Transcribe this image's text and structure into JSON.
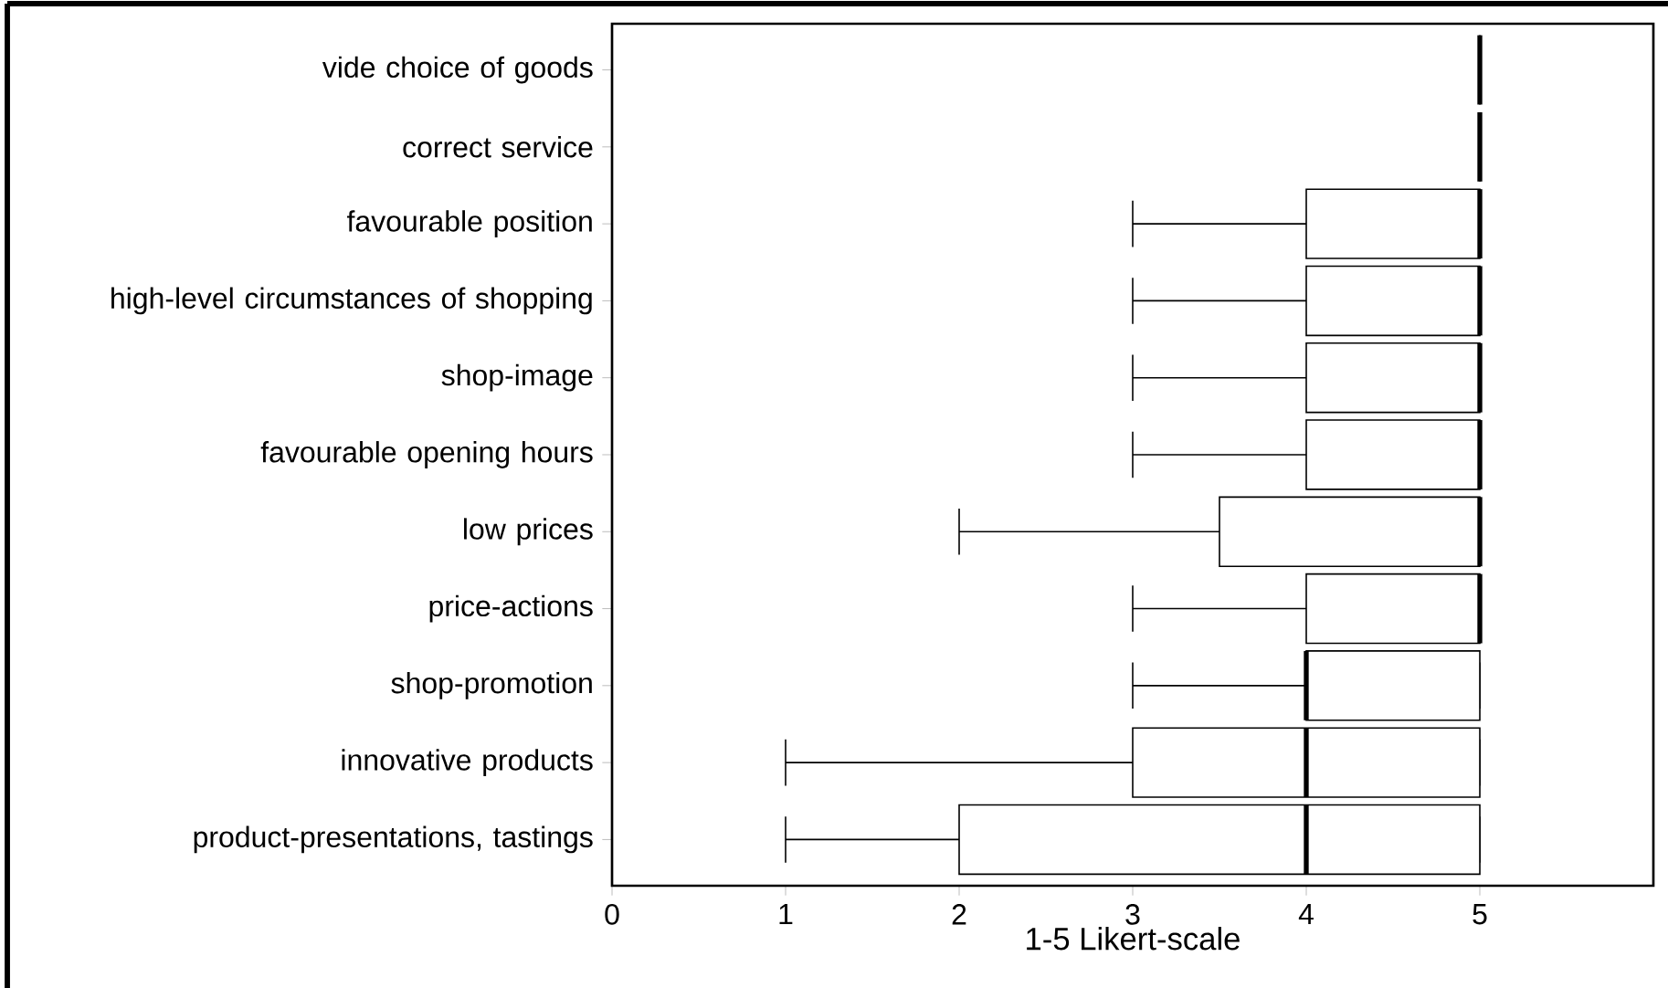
{
  "chart_data": {
    "type": "box",
    "orientation": "horizontal",
    "xlabel": "1-5 Likert-scale",
    "categories": [
      "vide choice of goods",
      "correct service",
      "favourable position",
      "high-level circumstances of shopping",
      "shop-image",
      "favourable opening hours",
      "low prices",
      "price-actions",
      "shop-promotion",
      "innovative products",
      "product-presentations, tastings"
    ],
    "boxes": [
      {
        "low": 5,
        "q1": 5,
        "median": 5,
        "q3": 5,
        "high": 5
      },
      {
        "low": 5,
        "q1": 5,
        "median": 5,
        "q3": 5,
        "high": 5
      },
      {
        "low": 3,
        "q1": 4,
        "median": 5,
        "q3": 5,
        "high": 5
      },
      {
        "low": 3,
        "q1": 4,
        "median": 5,
        "q3": 5,
        "high": 5
      },
      {
        "low": 3,
        "q1": 4,
        "median": 5,
        "q3": 5,
        "high": 5
      },
      {
        "low": 3,
        "q1": 4,
        "median": 5,
        "q3": 5,
        "high": 5
      },
      {
        "low": 2,
        "q1": 3.5,
        "median": 5,
        "q3": 5,
        "high": 5
      },
      {
        "low": 3,
        "q1": 4,
        "median": 5,
        "q3": 5,
        "high": 5
      },
      {
        "low": 3,
        "q1": 4,
        "median": 4,
        "q3": 5,
        "high": 5
      },
      {
        "low": 1,
        "q1": 3,
        "median": 4,
        "q3": 5,
        "high": 5
      },
      {
        "low": 1,
        "q1": 2,
        "median": 4,
        "q3": 5,
        "high": 5
      }
    ],
    "color": "#000000",
    "xlim": [
      0,
      6
    ],
    "xticks": [
      0,
      1,
      2,
      3,
      4,
      5
    ]
  }
}
